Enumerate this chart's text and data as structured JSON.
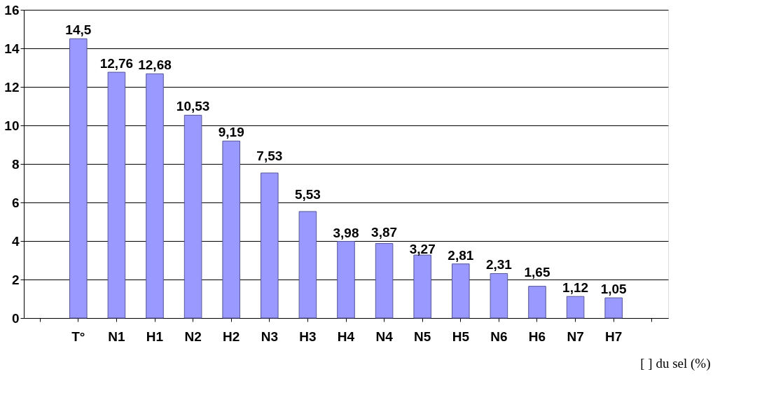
{
  "chart_data": {
    "type": "bar",
    "xlabel": "[ ] du sel (%)",
    "categories": [
      null,
      "T°",
      "N1",
      "H1",
      "N2",
      "H2",
      "N3",
      "H3",
      "H4",
      "N4",
      "N5",
      "H5",
      "N6",
      "H6",
      "N7",
      "H7",
      null
    ],
    "values": [
      null,
      14.5,
      12.76,
      12.68,
      10.53,
      9.19,
      7.53,
      5.53,
      3.98,
      3.87,
      3.27,
      2.81,
      2.31,
      1.65,
      1.12,
      1.05,
      null
    ],
    "value_labels": [
      null,
      "14,5",
      "12,76",
      "12,68",
      "10,53",
      "9,19",
      "7,53",
      "5,53",
      "3,98",
      "3,87",
      "3,27",
      "2,81",
      "2,31",
      "1,65",
      "1,12",
      "1,05",
      null
    ],
    "color": "#9999ff",
    "ylim": [
      0,
      16
    ],
    "yticks": [
      0,
      2,
      4,
      6,
      8,
      10,
      12,
      14,
      16
    ],
    "grid": "y"
  }
}
